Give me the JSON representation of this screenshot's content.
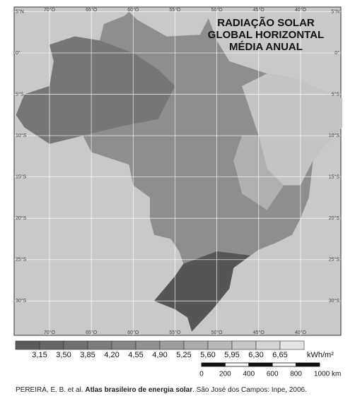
{
  "title": [
    "RADIAÇÃO SOLAR",
    "GLOBAL HORIZONTAL",
    "MÉDIA ANUAL"
  ],
  "latitude_labels": [
    "5°N",
    "0°",
    "5°S",
    "10°S",
    "15°S",
    "20°S",
    "25°S",
    "30°S"
  ],
  "longitude_labels": [
    "70°O",
    "65°O",
    "60°O",
    "55°O",
    "50°O",
    "45°O",
    "40°O"
  ],
  "legend": {
    "values": [
      "3,15",
      "3,50",
      "3,85",
      "4,20",
      "4,55",
      "4,90",
      "5,25",
      "5,60",
      "5,95",
      "6,30",
      "6,65"
    ],
    "unit": "kWh/m²",
    "colors": [
      "#5a5a5a",
      "#666666",
      "#707070",
      "#7b7b7b",
      "#868686",
      "#929292",
      "#9e9e9e",
      "#ababab",
      "#b8b8b8",
      "#c6c6c6",
      "#d4d4d4",
      "#e4e4e4"
    ]
  },
  "scale": {
    "labels": [
      "0",
      "200",
      "400",
      "600",
      "800",
      "1000 km"
    ]
  },
  "citation": {
    "authors": "PEREIRA, E. B. et al.",
    "work": "Atlas brasileiro de energia solar",
    "publisher": ". São José dos Campos: Inpe, 2006."
  }
}
